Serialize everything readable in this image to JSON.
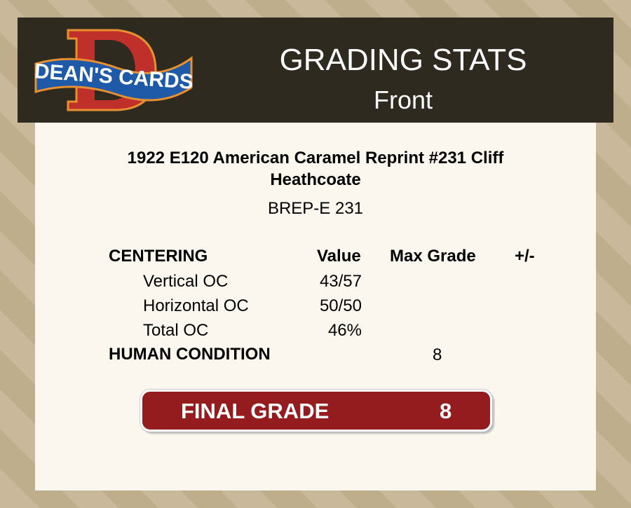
{
  "header": {
    "logo_text": "DEAN'S CARDS",
    "title": "GRADING STATS",
    "subtitle": "Front"
  },
  "card": {
    "title": "1922 E120 American Caramel Reprint #231 Cliff Heathcoate",
    "code": "BREP-E 231"
  },
  "table": {
    "headers": {
      "section": "CENTERING",
      "value": "Value",
      "max": "Max Grade",
      "pm": "+/-"
    },
    "rows": [
      {
        "label": "Vertical OC",
        "value": "43/57"
      },
      {
        "label": "Horizontal OC",
        "value": "50/50"
      },
      {
        "label": "Total OC",
        "value": "46%"
      }
    ],
    "human": {
      "label": "HUMAN CONDITION",
      "max": "8"
    }
  },
  "final": {
    "label": "FINAL GRADE",
    "value": "8"
  },
  "colors": {
    "header_bg": "#2f2a20",
    "panel_bg": "#fbf7ee",
    "grade_bg": "#941c1e"
  }
}
